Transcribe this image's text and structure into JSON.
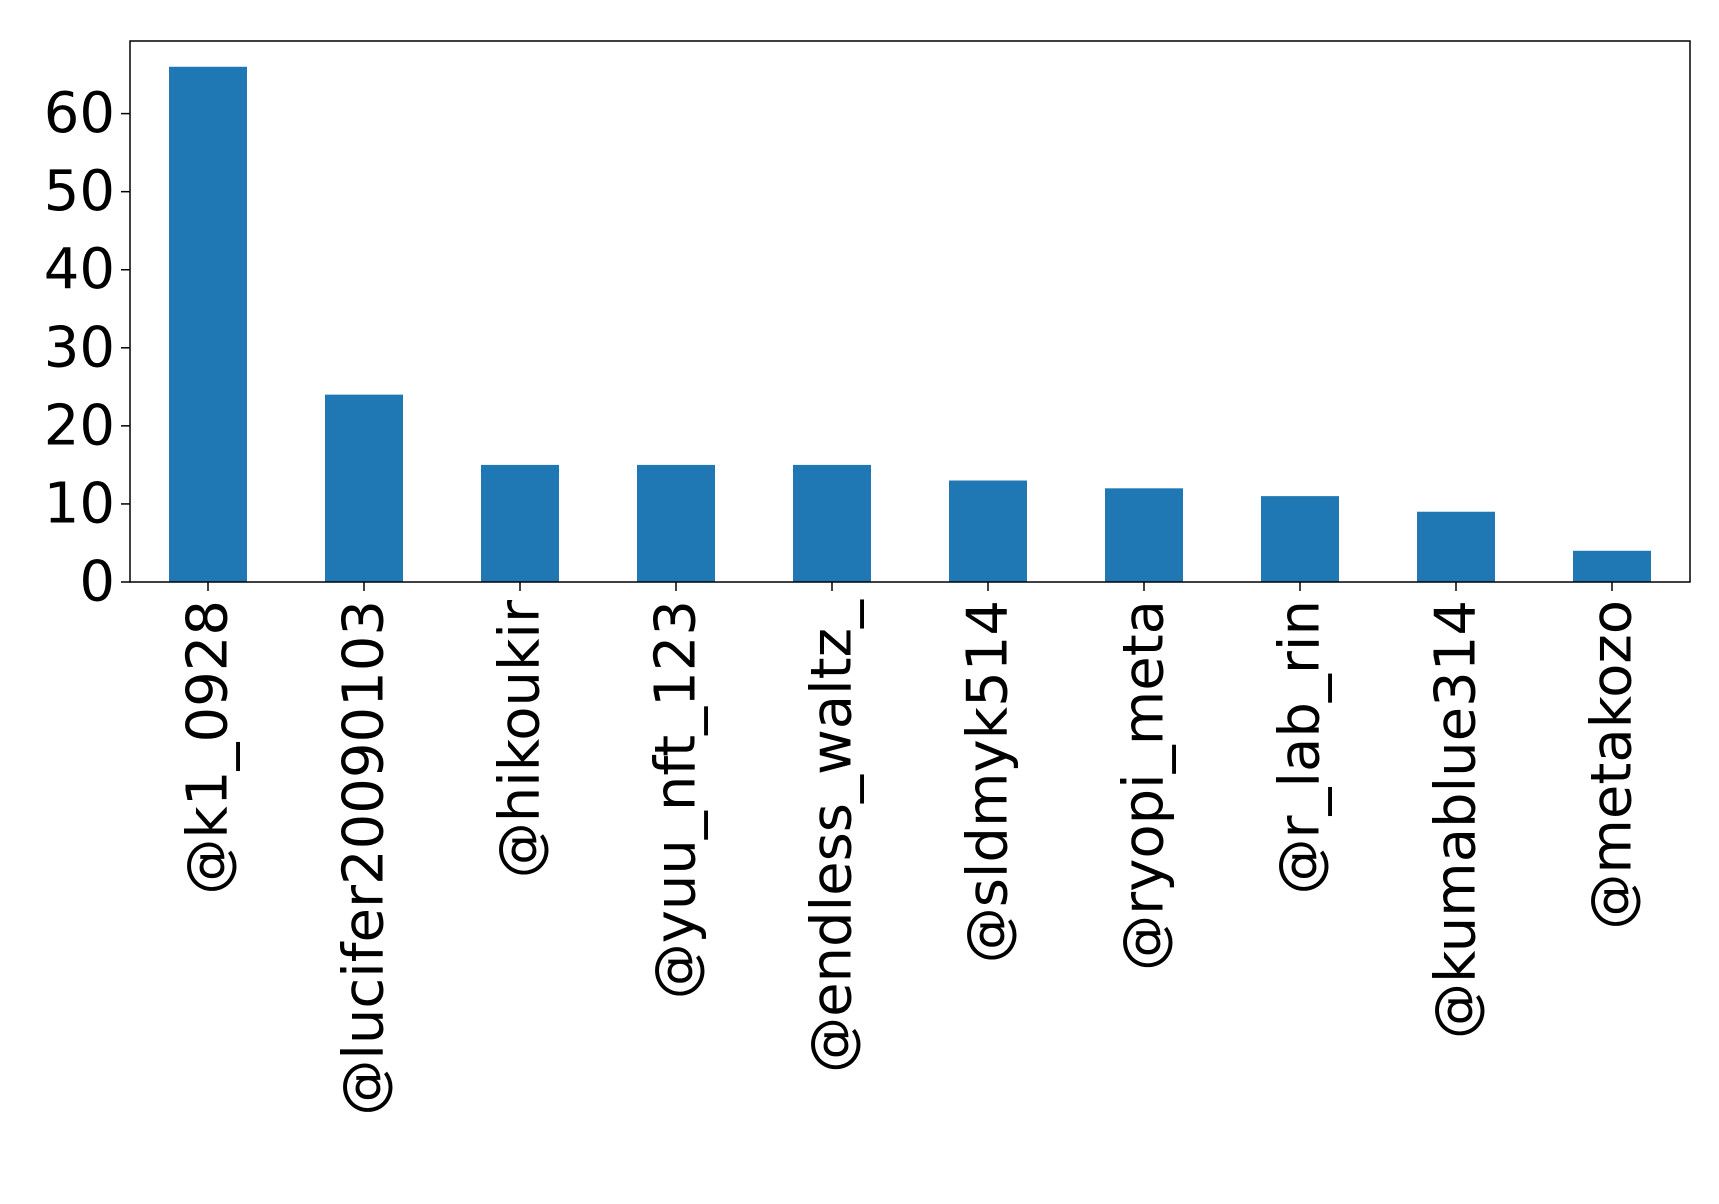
{
  "chart_data": {
    "type": "bar",
    "title": "",
    "xlabel": "",
    "ylabel": "",
    "categories": [
      "@k1_0928",
      "@lucifer20090103",
      "@hikoukir",
      "@yuu_nft_123",
      "@endless_waltz_",
      "@sldmyk514",
      "@ryopi_meta",
      "@r_lab_rin",
      "@kumablue314",
      "@metakozo"
    ],
    "values": [
      66,
      24,
      15,
      15,
      15,
      13,
      12,
      11,
      9,
      4
    ],
    "ylim": [
      0,
      69.3
    ],
    "yticks": [
      "0",
      "10",
      "20",
      "30",
      "40",
      "50",
      "60"
    ],
    "grid": false,
    "legend": "none",
    "bar_color": "#1f77b4"
  }
}
